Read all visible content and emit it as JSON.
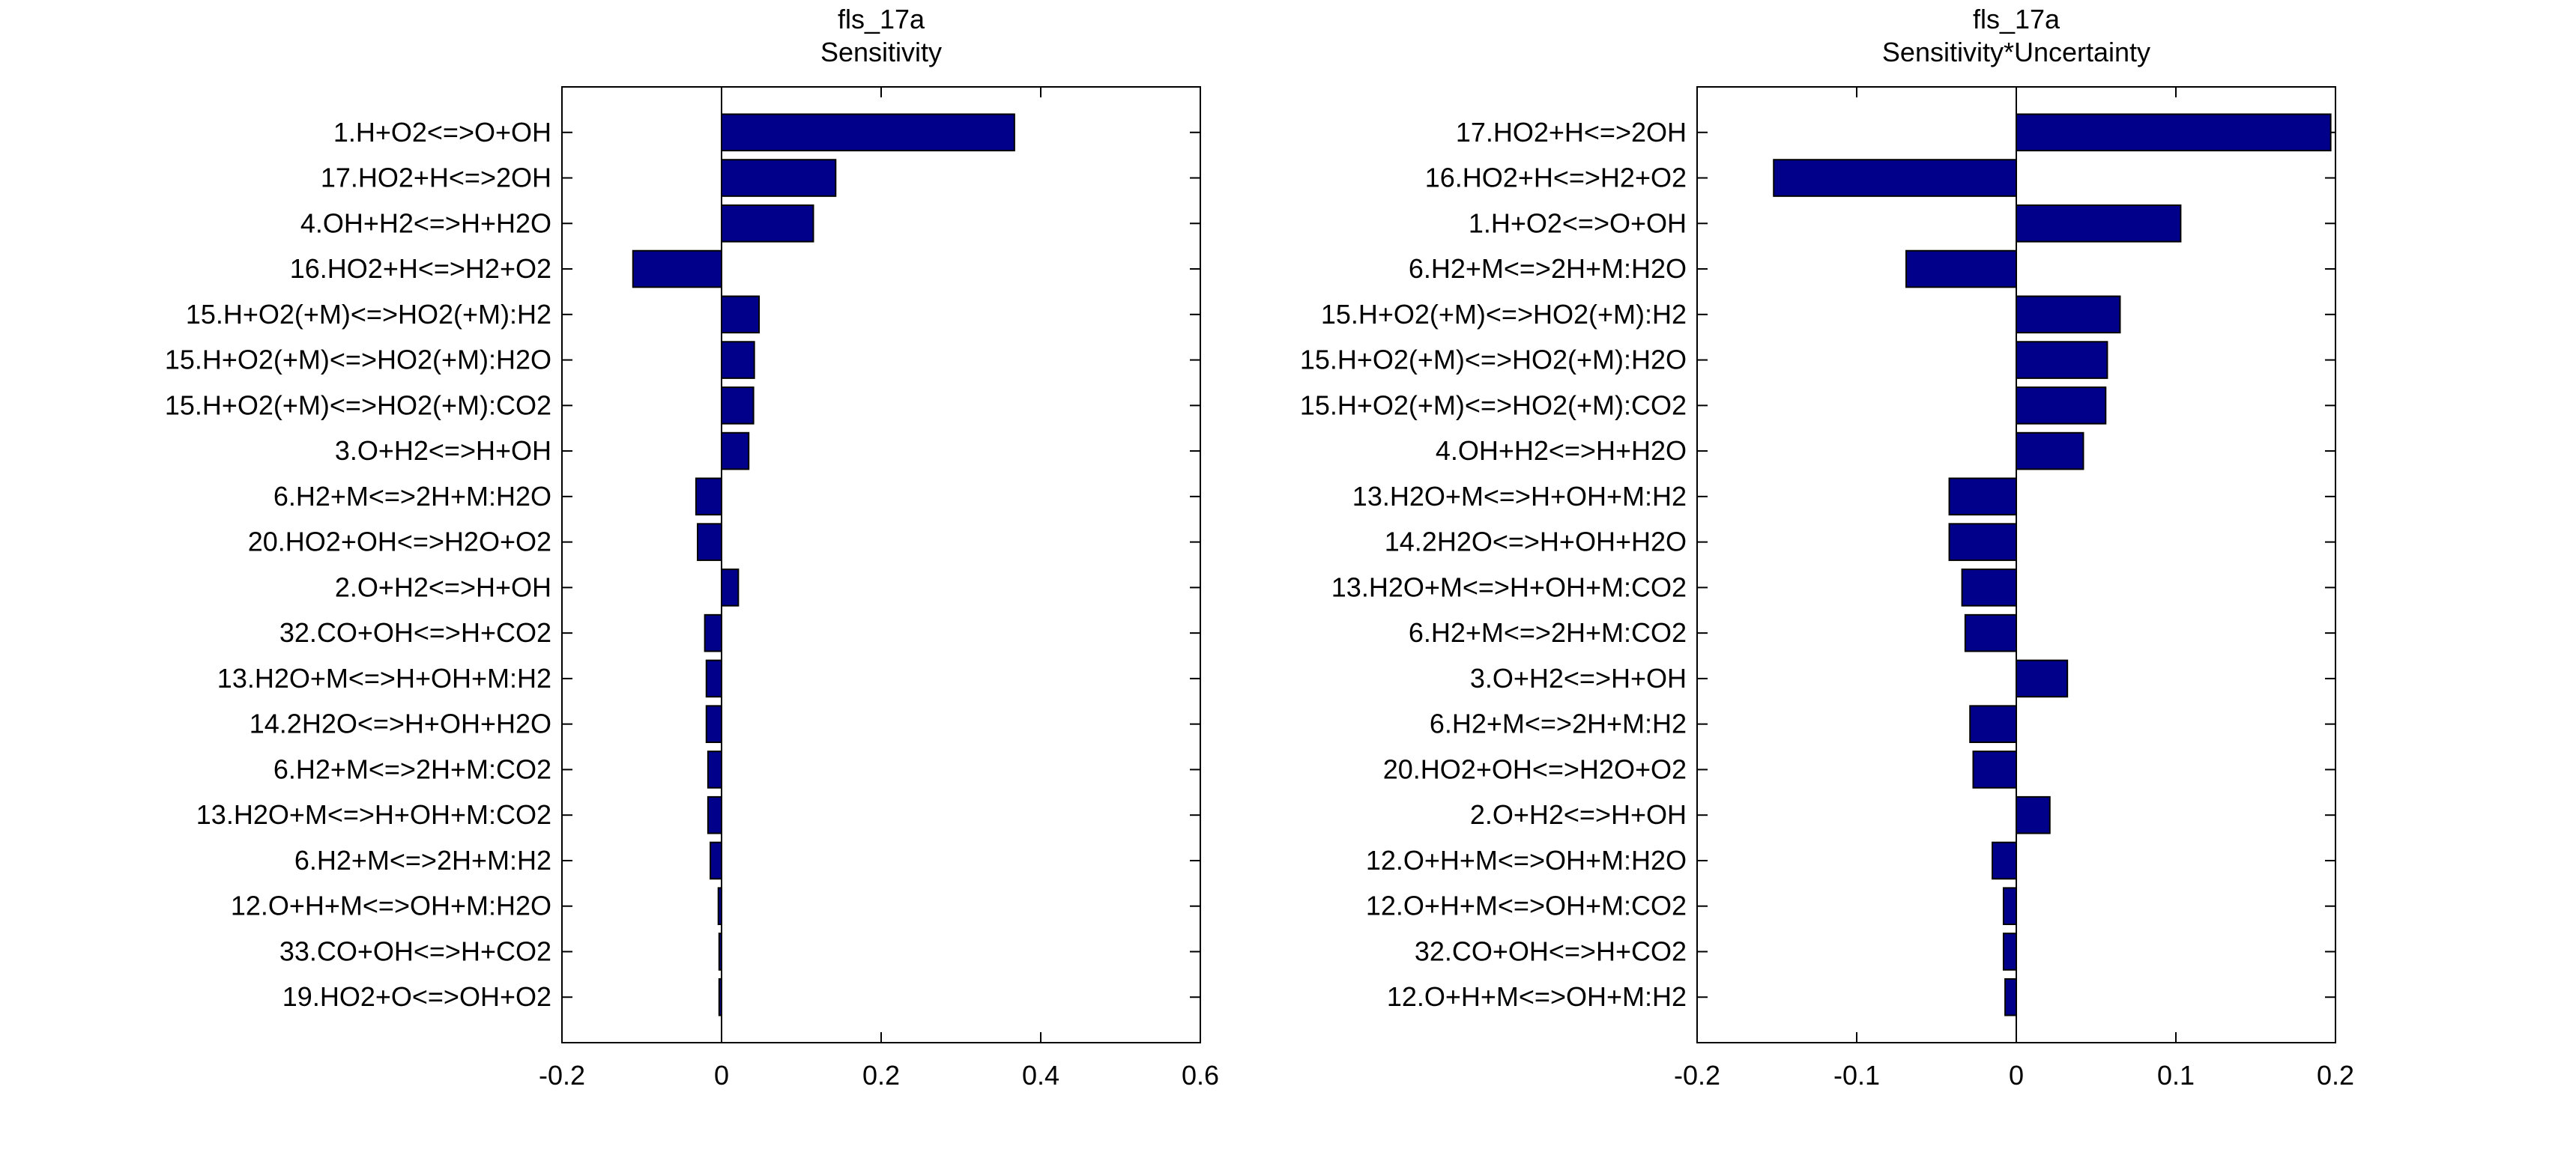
{
  "bar_color": "#00008B",
  "chart_data": [
    {
      "type": "bar",
      "orientation": "horizontal",
      "title": "fls_17a",
      "subtitle": "Sensitivity",
      "xlim": [
        -0.2,
        0.6
      ],
      "xticks": [
        "-0.2",
        "0",
        "0.2",
        "0.4",
        "0.6"
      ],
      "xtick_values": [
        -0.2,
        0,
        0.2,
        0.4,
        0.6
      ],
      "categories": [
        "1.H+O2<=>O+OH",
        "17.HO2+H<=>2OH",
        "4.OH+H2<=>H+H2O",
        "16.HO2+H<=>H2+O2",
        "15.H+O2(+M)<=>HO2(+M):H2",
        "15.H+O2(+M)<=>HO2(+M):H2O",
        "15.H+O2(+M)<=>HO2(+M):CO2",
        "3.O+H2<=>H+OH",
        "6.H2+M<=>2H+M:H2O",
        "20.HO2+OH<=>H2O+O2",
        "2.O+H2<=>H+OH",
        "32.CO+OH<=>H+CO2",
        "13.H2O+M<=>H+OH+M:H2",
        "14.2H2O<=>H+OH+H2O",
        "6.H2+M<=>2H+M:CO2",
        "13.H2O+M<=>H+OH+M:CO2",
        "6.H2+M<=>2H+M:H2",
        "12.O+H+M<=>OH+M:H2O",
        "33.CO+OH<=>H+CO2",
        "19.HO2+O<=>OH+O2"
      ],
      "values": [
        0.367,
        0.143,
        0.115,
        -0.111,
        0.047,
        0.041,
        0.04,
        0.034,
        -0.032,
        -0.03,
        0.021,
        -0.021,
        -0.019,
        -0.019,
        -0.017,
        -0.017,
        -0.014,
        -0.004,
        -0.003,
        -0.003
      ]
    },
    {
      "type": "bar",
      "orientation": "horizontal",
      "title": "fls_17a",
      "subtitle": "Sensitivity*Uncertainty",
      "xlim": [
        -0.2,
        0.2
      ],
      "xticks": [
        "-0.2",
        "-0.1",
        "0",
        "0.1",
        "0.2"
      ],
      "xtick_values": [
        -0.2,
        -0.1,
        0,
        0.1,
        0.2
      ],
      "categories": [
        "17.HO2+H<=>2OH",
        "16.HO2+H<=>H2+O2",
        "1.H+O2<=>O+OH",
        "6.H2+M<=>2H+M:H2O",
        "15.H+O2(+M)<=>HO2(+M):H2",
        "15.H+O2(+M)<=>HO2(+M):H2O",
        "15.H+O2(+M)<=>HO2(+M):CO2",
        "4.OH+H2<=>H+H2O",
        "13.H2O+M<=>H+OH+M:H2",
        "14.2H2O<=>H+OH+H2O",
        "13.H2O+M<=>H+OH+M:CO2",
        "6.H2+M<=>2H+M:CO2",
        "3.O+H2<=>H+OH",
        "6.H2+M<=>2H+M:H2",
        "20.HO2+OH<=>H2O+O2",
        "2.O+H2<=>H+OH",
        "12.O+H+M<=>OH+M:H2O",
        "12.O+H+M<=>OH+M:CO2",
        "32.CO+OH<=>H+CO2",
        "12.O+H+M<=>OH+M:H2"
      ],
      "values": [
        0.197,
        -0.152,
        0.103,
        -0.069,
        0.065,
        0.057,
        0.056,
        0.042,
        -0.042,
        -0.042,
        -0.034,
        -0.032,
        0.032,
        -0.029,
        -0.027,
        0.021,
        -0.015,
        -0.008,
        -0.008,
        -0.007
      ]
    }
  ]
}
